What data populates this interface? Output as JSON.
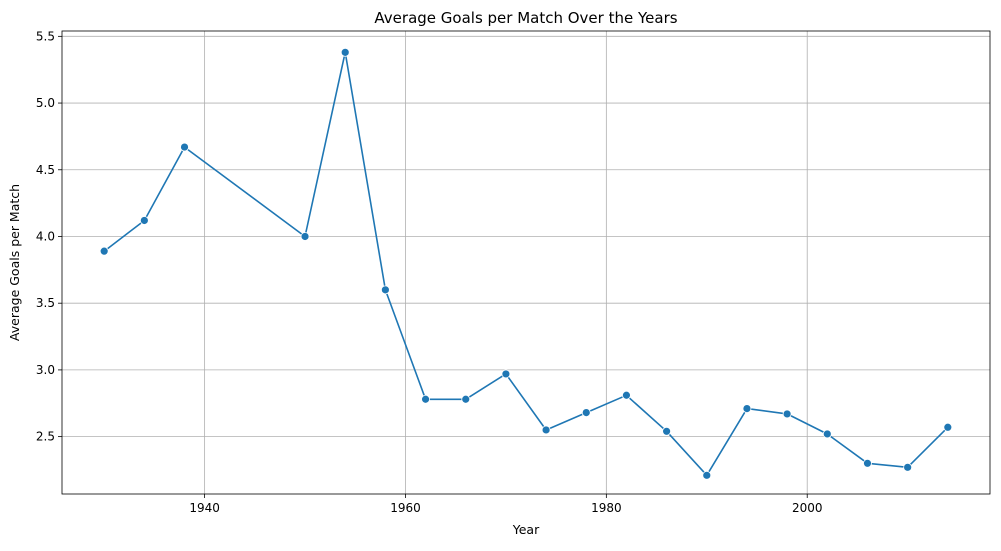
{
  "chart_data": {
    "type": "line",
    "title": "Average Goals per Match Over the Years",
    "xlabel": "Year",
    "ylabel": "Average Goals per Match",
    "xlim": [
      1925.8,
      2018.2
    ],
    "ylim": [
      2.07,
      5.54
    ],
    "xticks": [
      1940,
      1960,
      1980,
      2000
    ],
    "yticks": [
      2.5,
      3.0,
      3.5,
      4.0,
      4.5,
      5.0,
      5.5
    ],
    "xtick_labels": [
      "1940",
      "1960",
      "1980",
      "2000"
    ],
    "ytick_labels": [
      "2.5",
      "3.0",
      "3.5",
      "4.0",
      "4.5",
      "5.0",
      "5.5"
    ],
    "grid": true,
    "color": "#1f77b4",
    "x": [
      1930,
      1934,
      1938,
      1950,
      1954,
      1958,
      1962,
      1966,
      1970,
      1974,
      1978,
      1982,
      1986,
      1990,
      1994,
      1998,
      2002,
      2006,
      2010,
      2014
    ],
    "y": [
      3.89,
      4.12,
      4.67,
      4.0,
      5.38,
      3.6,
      2.78,
      2.78,
      2.97,
      2.55,
      2.68,
      2.81,
      2.54,
      2.21,
      2.71,
      2.67,
      2.52,
      2.3,
      2.27,
      2.57
    ]
  }
}
